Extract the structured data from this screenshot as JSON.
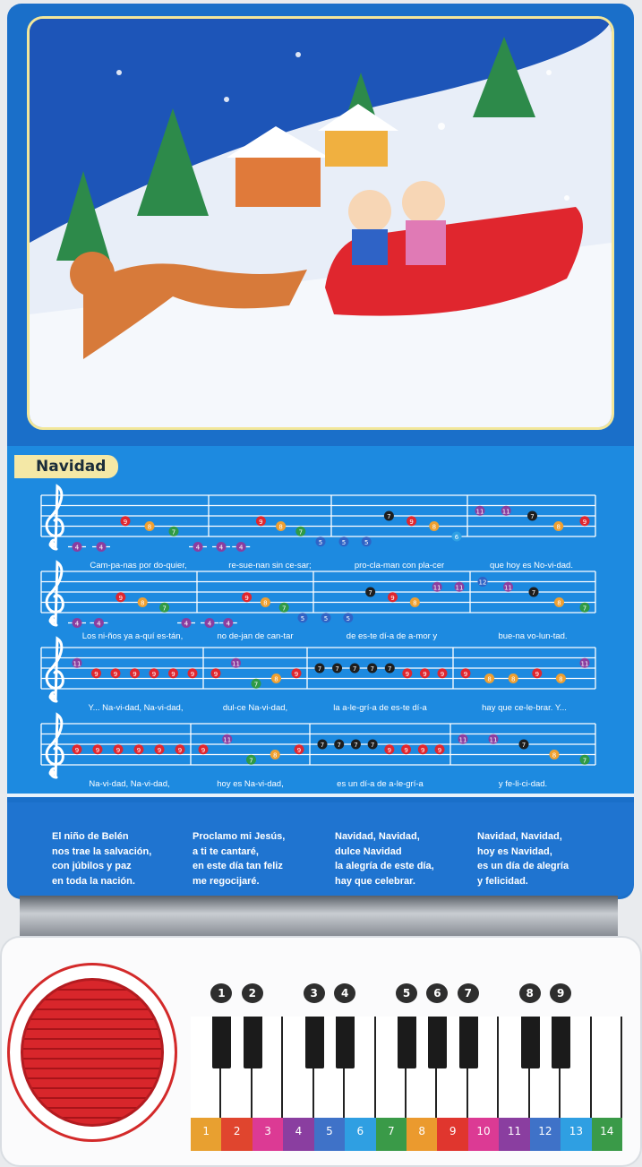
{
  "song": {
    "title": "Navidad",
    "note_colors": {
      "4": "#8a3ea0",
      "5": "#2f63c6",
      "6": "#2fa0e4",
      "7": "#2e9a46",
      "8": "#f0a030",
      "9": "#e0262e",
      "10": "#e03a98",
      "11": "#8a3ea0",
      "12": "#2f63c6",
      "b7": "#1e1e1e"
    },
    "staves": [
      {
        "measures": [
          {
            "notes": [
              "4",
              "4",
              "9",
              "8",
              "7",
              "4"
            ],
            "lyrics": "Cam-pa-nas  por  do-quier,"
          },
          {
            "notes": [
              "4",
              "4",
              "9",
              "8",
              "7",
              "5"
            ],
            "lyrics": "re-sue-nan sin  ce-sar;"
          },
          {
            "notes": [
              "5",
              "5",
              "b7",
              "9",
              "8",
              "6"
            ],
            "lyrics": "pro-cla-man con pla-cer"
          },
          {
            "notes": [
              "11",
              "11",
              "b7",
              "8",
              "9"
            ],
            "lyrics": "que hoy es No-vi-dad."
          }
        ]
      },
      {
        "measures": [
          {
            "notes": [
              "4",
              "4",
              "9",
              "8",
              "7",
              "4"
            ],
            "lyrics": "Los  ni-ños ya a-quí es-tán,"
          },
          {
            "notes": [
              "4",
              "4",
              "9",
              "8",
              "7",
              "5"
            ],
            "lyrics": "no de-jan de can-tar"
          },
          {
            "notes": [
              "5",
              "5",
              "b7",
              "9",
              "8",
              "11",
              "11"
            ],
            "lyrics": "de es-te dí-a de a-mor   y"
          },
          {
            "notes": [
              "12",
              "11",
              "b7",
              "8",
              "7"
            ],
            "lyrics": "bue-na  vo-lun-tad."
          }
        ]
      },
      {
        "measures": [
          {
            "notes": [
              "11",
              "9",
              "9",
              "9",
              "9",
              "9",
              "9"
            ],
            "lyrics": "Y... Na-vi-dad,  Na-vi-dad,"
          },
          {
            "notes": [
              "9",
              "11",
              "7",
              "8",
              "9"
            ],
            "lyrics": "dul-ce Na-vi-dad,"
          },
          {
            "notes": [
              "b7",
              "b7",
              "b7",
              "b7",
              "b7",
              "9",
              "9",
              "9"
            ],
            "lyrics": "la a-le-grí-a  de es-te dí-a"
          },
          {
            "notes": [
              "9",
              "8",
              "8",
              "9",
              "8",
              "11"
            ],
            "lyrics": "hay  que  ce-le-brar.  Y..."
          }
        ]
      },
      {
        "measures": [
          {
            "notes": [
              "9",
              "9",
              "9",
              "9",
              "9",
              "9"
            ],
            "lyrics": "Na-vi-dad,  Na-vi-dad,"
          },
          {
            "notes": [
              "9",
              "11",
              "7",
              "8",
              "9"
            ],
            "lyrics": "hoy es  Na-vi-dad,"
          },
          {
            "notes": [
              "b7",
              "b7",
              "b7",
              "b7",
              "9",
              "9",
              "9",
              "9"
            ],
            "lyrics": "es  un  dí-a  de a-le-grí-a"
          },
          {
            "notes": [
              "11",
              "11",
              "b7",
              "8",
              "7"
            ],
            "lyrics": "y   fe-li-ci-dad."
          }
        ]
      }
    ]
  },
  "verses": [
    "El niño de Belén\nnos trae la salvación,\ncon júbilos y paz\nen toda la nación.",
    "Proclamo mi Jesús,\na ti te cantaré,\nen este día tan feliz\nme regocijaré.",
    "Navidad, Navidad,\ndulce Navidad\nla alegría de este día,\nhay que celebrar.",
    "Navidad, Navidad,\nhoy es Navidad,\nes un día de alegría\ny felicidad."
  ],
  "keyboard": {
    "black_keys": [
      "1",
      "2",
      "3",
      "4",
      "5",
      "6",
      "7",
      "8",
      "9"
    ],
    "white_keys": [
      "1",
      "2",
      "3",
      "4",
      "5",
      "6",
      "7",
      "8",
      "9",
      "10",
      "11",
      "12",
      "13",
      "14"
    ],
    "white_key_colors": [
      "#e8a030",
      "#e0452e",
      "#dc3a94",
      "#8a3ea0",
      "#3f72c8",
      "#2f9fe2",
      "#3a9a48",
      "#eb9a2e",
      "#e0362e",
      "#dc3a94",
      "#8a3ea0",
      "#3f72c8",
      "#2f9fe2",
      "#3a9a48"
    ]
  }
}
